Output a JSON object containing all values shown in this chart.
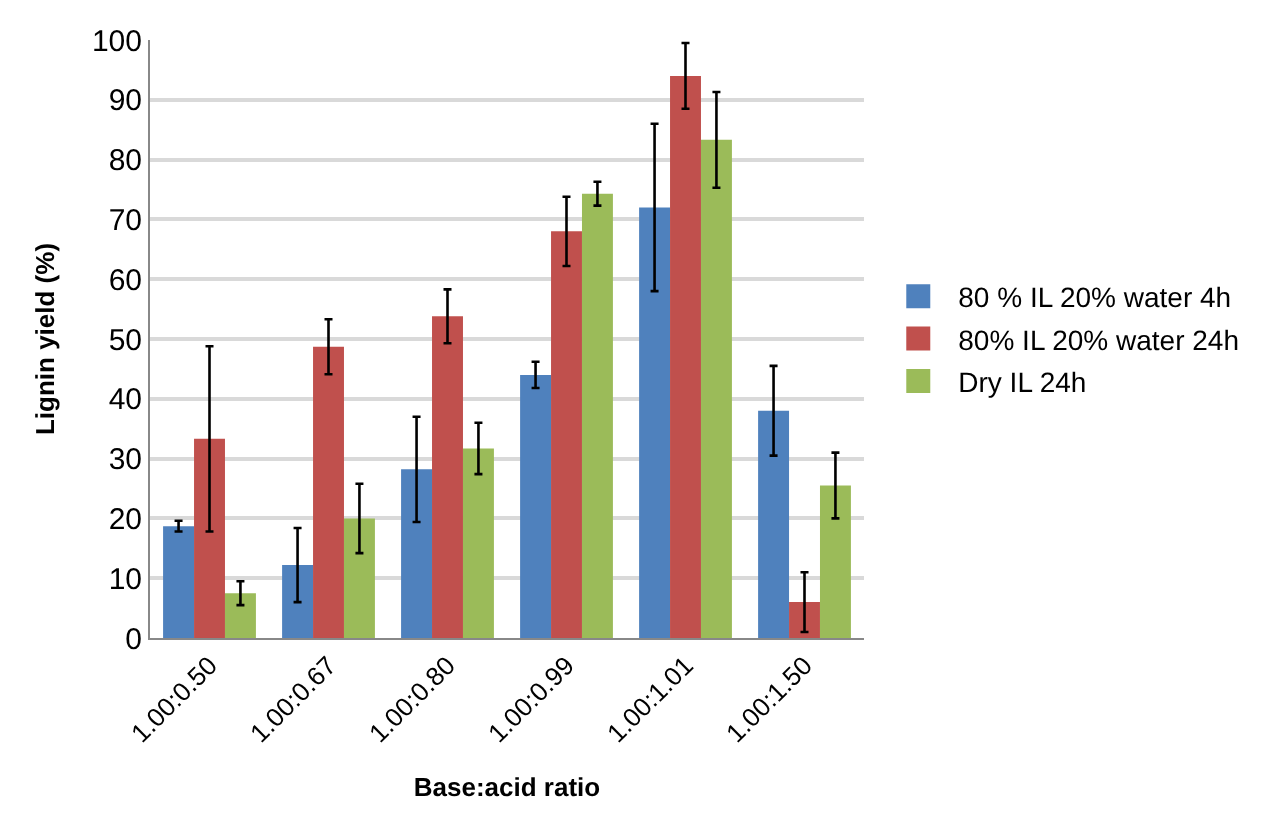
{
  "chart_data": {
    "type": "bar",
    "xlabel": "Base:acid ratio",
    "ylabel": "Lignin yield (%)",
    "categories": [
      "1.00:0.50",
      "1.00:0.67",
      "1.00:0.80",
      "1.00:0.99",
      "1.00:1.01",
      "1.00:1.50"
    ],
    "series": [
      {
        "name": "80 % IL 20% water 4h",
        "color": "#4f81bd",
        "values": [
          18.7,
          12.2,
          28.2,
          44,
          72,
          38
        ],
        "errors": [
          0.9,
          6.2,
          8.8,
          2.2,
          14,
          7.5
        ]
      },
      {
        "name": "80% IL 20% water 24h",
        "color": "#c0504d",
        "values": [
          33.3,
          48.7,
          53.8,
          68,
          94,
          6
        ],
        "errors": [
          15.5,
          4.6,
          4.5,
          5.8,
          5.5,
          5
        ]
      },
      {
        "name": "Dry IL 24h",
        "color": "#9bbb59",
        "values": [
          7.5,
          20,
          31.7,
          74.3,
          83.3,
          25.5
        ],
        "errors": [
          2,
          5.8,
          4.3,
          2,
          8,
          5.5
        ]
      }
    ],
    "ylim": [
      0,
      100
    ],
    "yticks": [
      0,
      10,
      20,
      30,
      40,
      50,
      60,
      70,
      80,
      90,
      100
    ],
    "grid": "y",
    "legend": "right"
  }
}
